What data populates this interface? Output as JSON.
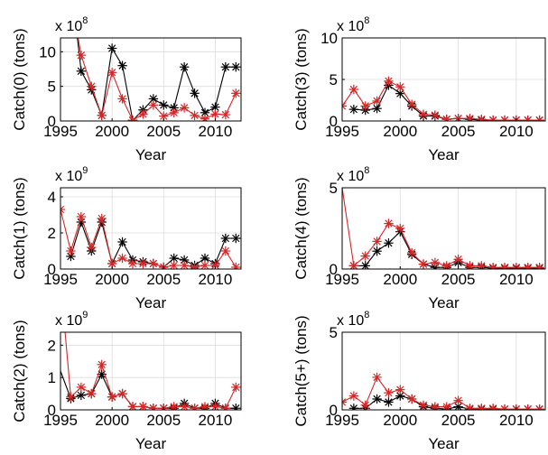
{
  "chart_data": [
    {
      "type": "line",
      "ylabel": "Catch(0) (tons)",
      "xlabel": "Year",
      "multiplier": "x 10",
      "exponent": "8",
      "xlim": [
        1995,
        2012.5
      ],
      "ylim": [
        0,
        12
      ],
      "xticks": [
        1995,
        2000,
        2005,
        2010
      ],
      "yticks": [
        0,
        5,
        10
      ],
      "grid": true,
      "series": [
        {
          "color": "#000000",
          "x": [
            1997,
            1998,
            1999,
            2000,
            2001,
            2002,
            2003,
            2004,
            2005,
            2006,
            2007,
            2008,
            2009,
            2010,
            2011,
            2012
          ],
          "y": [
            7.2,
            4.5,
            0.8,
            10.5,
            8.0,
            0.1,
            1.6,
            3.2,
            2.3,
            1.9,
            7.8,
            4.0,
            1.2,
            2.0,
            7.8,
            7.8
          ],
          "pre": [
            [
              1996.35,
              12.5
            ],
            [
              1996.6,
              12.5
            ]
          ]
        },
        {
          "color": "#d62728",
          "x": [
            1997,
            1998,
            1999,
            2000,
            2001,
            2002,
            2003,
            2004,
            2005,
            2006,
            2007,
            2008,
            2009,
            2010,
            2011,
            2012
          ],
          "y": [
            9.5,
            5.0,
            0.8,
            7.0,
            3.2,
            0.1,
            1.0,
            2.3,
            0.7,
            1.2,
            1.9,
            0.8,
            0.3,
            1.0,
            0.9,
            4.0
          ],
          "pre": [
            [
              1996.65,
              12.5
            ]
          ]
        }
      ]
    },
    {
      "type": "line",
      "ylabel": "Catch(3) (tons)",
      "xlabel": "Year",
      "multiplier": "x 10",
      "exponent": "8",
      "xlim": [
        1995,
        2012.5
      ],
      "ylim": [
        0,
        10
      ],
      "xticks": [
        1995,
        2000,
        2005,
        2010
      ],
      "yticks": [
        0,
        5,
        10
      ],
      "grid": true,
      "series": [
        {
          "color": "#000000",
          "x": [
            1996,
            1997,
            1998,
            1999,
            2000,
            2001,
            2002,
            2003,
            2004,
            2005,
            2006,
            2007,
            2008,
            2009,
            2010,
            2011,
            2012
          ],
          "y": [
            1.4,
            1.3,
            1.5,
            4.3,
            3.3,
            1.8,
            0.6,
            0.6,
            0.2,
            0.3,
            0.2,
            0.1,
            0.1,
            0.1,
            0.1,
            0.1,
            0.1
          ]
        },
        {
          "color": "#d62728",
          "x": [
            1995,
            1996,
            1997,
            1998,
            1999,
            2000,
            2001,
            2002,
            2003,
            2004,
            2005,
            2006,
            2007,
            2008,
            2009,
            2010,
            2011,
            2012
          ],
          "y": [
            1.8,
            3.8,
            1.8,
            2.4,
            4.8,
            4.1,
            2.0,
            0.8,
            0.7,
            0.2,
            0.3,
            0.3,
            0.2,
            0.1,
            0.1,
            0.1,
            0.1,
            0.1
          ]
        }
      ]
    },
    {
      "type": "line",
      "ylabel": "Catch(1) (tons)",
      "xlabel": "Year",
      "multiplier": "x 10",
      "exponent": "9",
      "xlim": [
        1995,
        2012.5
      ],
      "ylim": [
        0,
        4.5
      ],
      "xticks": [
        1995,
        2000,
        2005,
        2010
      ],
      "yticks": [
        0,
        2,
        4
      ],
      "grid": true,
      "series": [
        {
          "color": "#000000",
          "x": [
            1996,
            1997,
            1998,
            1999,
            2000,
            2001,
            2002,
            2003,
            2004,
            2005,
            2006,
            2007,
            2008,
            2009,
            2010,
            2011,
            2012
          ],
          "y": [
            0.7,
            2.6,
            1.0,
            2.6,
            0.3,
            1.5,
            0.5,
            0.4,
            0.3,
            0.1,
            0.6,
            0.5,
            0.2,
            0.6,
            0.3,
            1.7,
            1.7
          ]
        },
        {
          "color": "#d62728",
          "x": [
            1995,
            1996,
            1997,
            1998,
            1999,
            2000,
            2001,
            2002,
            2003,
            2004,
            2005,
            2006,
            2007,
            2008,
            2009,
            2010,
            2011,
            2012
          ],
          "y": [
            3.3,
            1.0,
            2.9,
            1.2,
            2.8,
            0.3,
            0.6,
            0.3,
            0.3,
            0.3,
            0.1,
            0.2,
            0.2,
            0.1,
            0.2,
            0.2,
            1.0,
            0.1
          ]
        }
      ]
    },
    {
      "type": "line",
      "ylabel": "Catch(4) (tons)",
      "xlabel": "Year",
      "multiplier": "x 10",
      "exponent": "8",
      "xlim": [
        1995,
        2012.5
      ],
      "ylim": [
        0,
        5
      ],
      "xticks": [
        1995,
        2000,
        2005,
        2010
      ],
      "yticks": [
        0,
        5
      ],
      "grid": true,
      "series": [
        {
          "color": "#000000",
          "x": [
            1996,
            1997,
            1998,
            1999,
            2000,
            2001,
            2002,
            2003,
            2004,
            2005,
            2006,
            2007,
            2008,
            2009,
            2010,
            2011,
            2012
          ],
          "y": [
            0.2,
            0.2,
            1.1,
            1.6,
            2.3,
            0.9,
            0.3,
            0.1,
            0.1,
            0.4,
            0.1,
            0.1,
            0.05,
            0.05,
            0.05,
            0.05,
            0.05
          ]
        },
        {
          "color": "#d62728",
          "x": [
            1996,
            1997,
            1998,
            1999,
            2000,
            2001,
            2002,
            2003,
            2004,
            2005,
            2006,
            2007,
            2008,
            2009,
            2010,
            2011,
            2012
          ],
          "y": [
            0.2,
            0.8,
            1.7,
            2.8,
            2.5,
            1.0,
            0.3,
            0.4,
            0.2,
            0.6,
            0.2,
            0.2,
            0.1,
            0.1,
            0.1,
            0.1,
            0.1
          ],
          "pre": [
            [
              1995,
              5.0
            ]
          ]
        }
      ]
    },
    {
      "type": "line",
      "ylabel": "Catch(2) (tons)",
      "xlabel": "Year",
      "multiplier": "x 10",
      "exponent": "9",
      "xlim": [
        1995,
        2012.5
      ],
      "ylim": [
        0,
        2.4
      ],
      "xticks": [
        1995,
        2000,
        2005,
        2010
      ],
      "yticks": [
        0,
        1,
        2
      ],
      "grid": true,
      "series": [
        {
          "color": "#000000",
          "x": [
            1996,
            1997,
            1998,
            1999,
            2000,
            2001,
            2002,
            2003,
            2004,
            2005,
            2006,
            2007,
            2008,
            2009,
            2010,
            2011,
            2012
          ],
          "y": [
            0.35,
            0.45,
            0.5,
            1.1,
            0.4,
            0.5,
            0.1,
            0.1,
            0.05,
            0.05,
            0.05,
            0.2,
            0.05,
            0.05,
            0.2,
            0.05,
            0.05
          ],
          "pre": [
            [
              1995,
              1.2
            ]
          ]
        },
        {
          "color": "#d62728",
          "x": [
            1996,
            1997,
            1998,
            1999,
            2000,
            2001,
            2002,
            2003,
            2004,
            2005,
            2006,
            2007,
            2008,
            2009,
            2010,
            2011,
            2012
          ],
          "y": [
            0.4,
            0.7,
            0.5,
            1.4,
            0.4,
            0.5,
            0.1,
            0.1,
            0.05,
            0.05,
            0.1,
            0.1,
            0.05,
            0.1,
            0.1,
            0.05,
            0.7
          ],
          "pre": [
            [
              1995.45,
              2.4
            ]
          ]
        }
      ]
    },
    {
      "type": "line",
      "ylabel": "Catch(5+) (tons)",
      "xlabel": "Year",
      "multiplier": "x 10",
      "exponent": "8",
      "xlim": [
        1995,
        2012.5
      ],
      "ylim": [
        0,
        5
      ],
      "xticks": [
        1995,
        2000,
        2005,
        2010
      ],
      "yticks": [
        0,
        5
      ],
      "grid": true,
      "series": [
        {
          "color": "#000000",
          "x": [
            1996,
            1997,
            1998,
            1999,
            2000,
            2001,
            2002,
            2003,
            2004,
            2005,
            2006,
            2007,
            2008,
            2009,
            2010,
            2011,
            2012
          ],
          "y": [
            0.1,
            0.1,
            0.7,
            0.5,
            0.9,
            0.7,
            0.2,
            0.1,
            0.05,
            0.2,
            0.05,
            0.05,
            0.05,
            0.05,
            0.05,
            0.05,
            0.05
          ]
        },
        {
          "color": "#d62728",
          "x": [
            1995,
            1996,
            1997,
            1998,
            1999,
            2000,
            2001,
            2002,
            2003,
            2004,
            2005,
            2006,
            2007,
            2008,
            2009,
            2010,
            2011,
            2012
          ],
          "y": [
            0.5,
            0.9,
            0.3,
            2.1,
            1.1,
            1.3,
            0.7,
            0.3,
            0.2,
            0.2,
            0.6,
            0.1,
            0.1,
            0.1,
            0.05,
            0.05,
            0.05,
            0.05
          ]
        }
      ]
    }
  ]
}
